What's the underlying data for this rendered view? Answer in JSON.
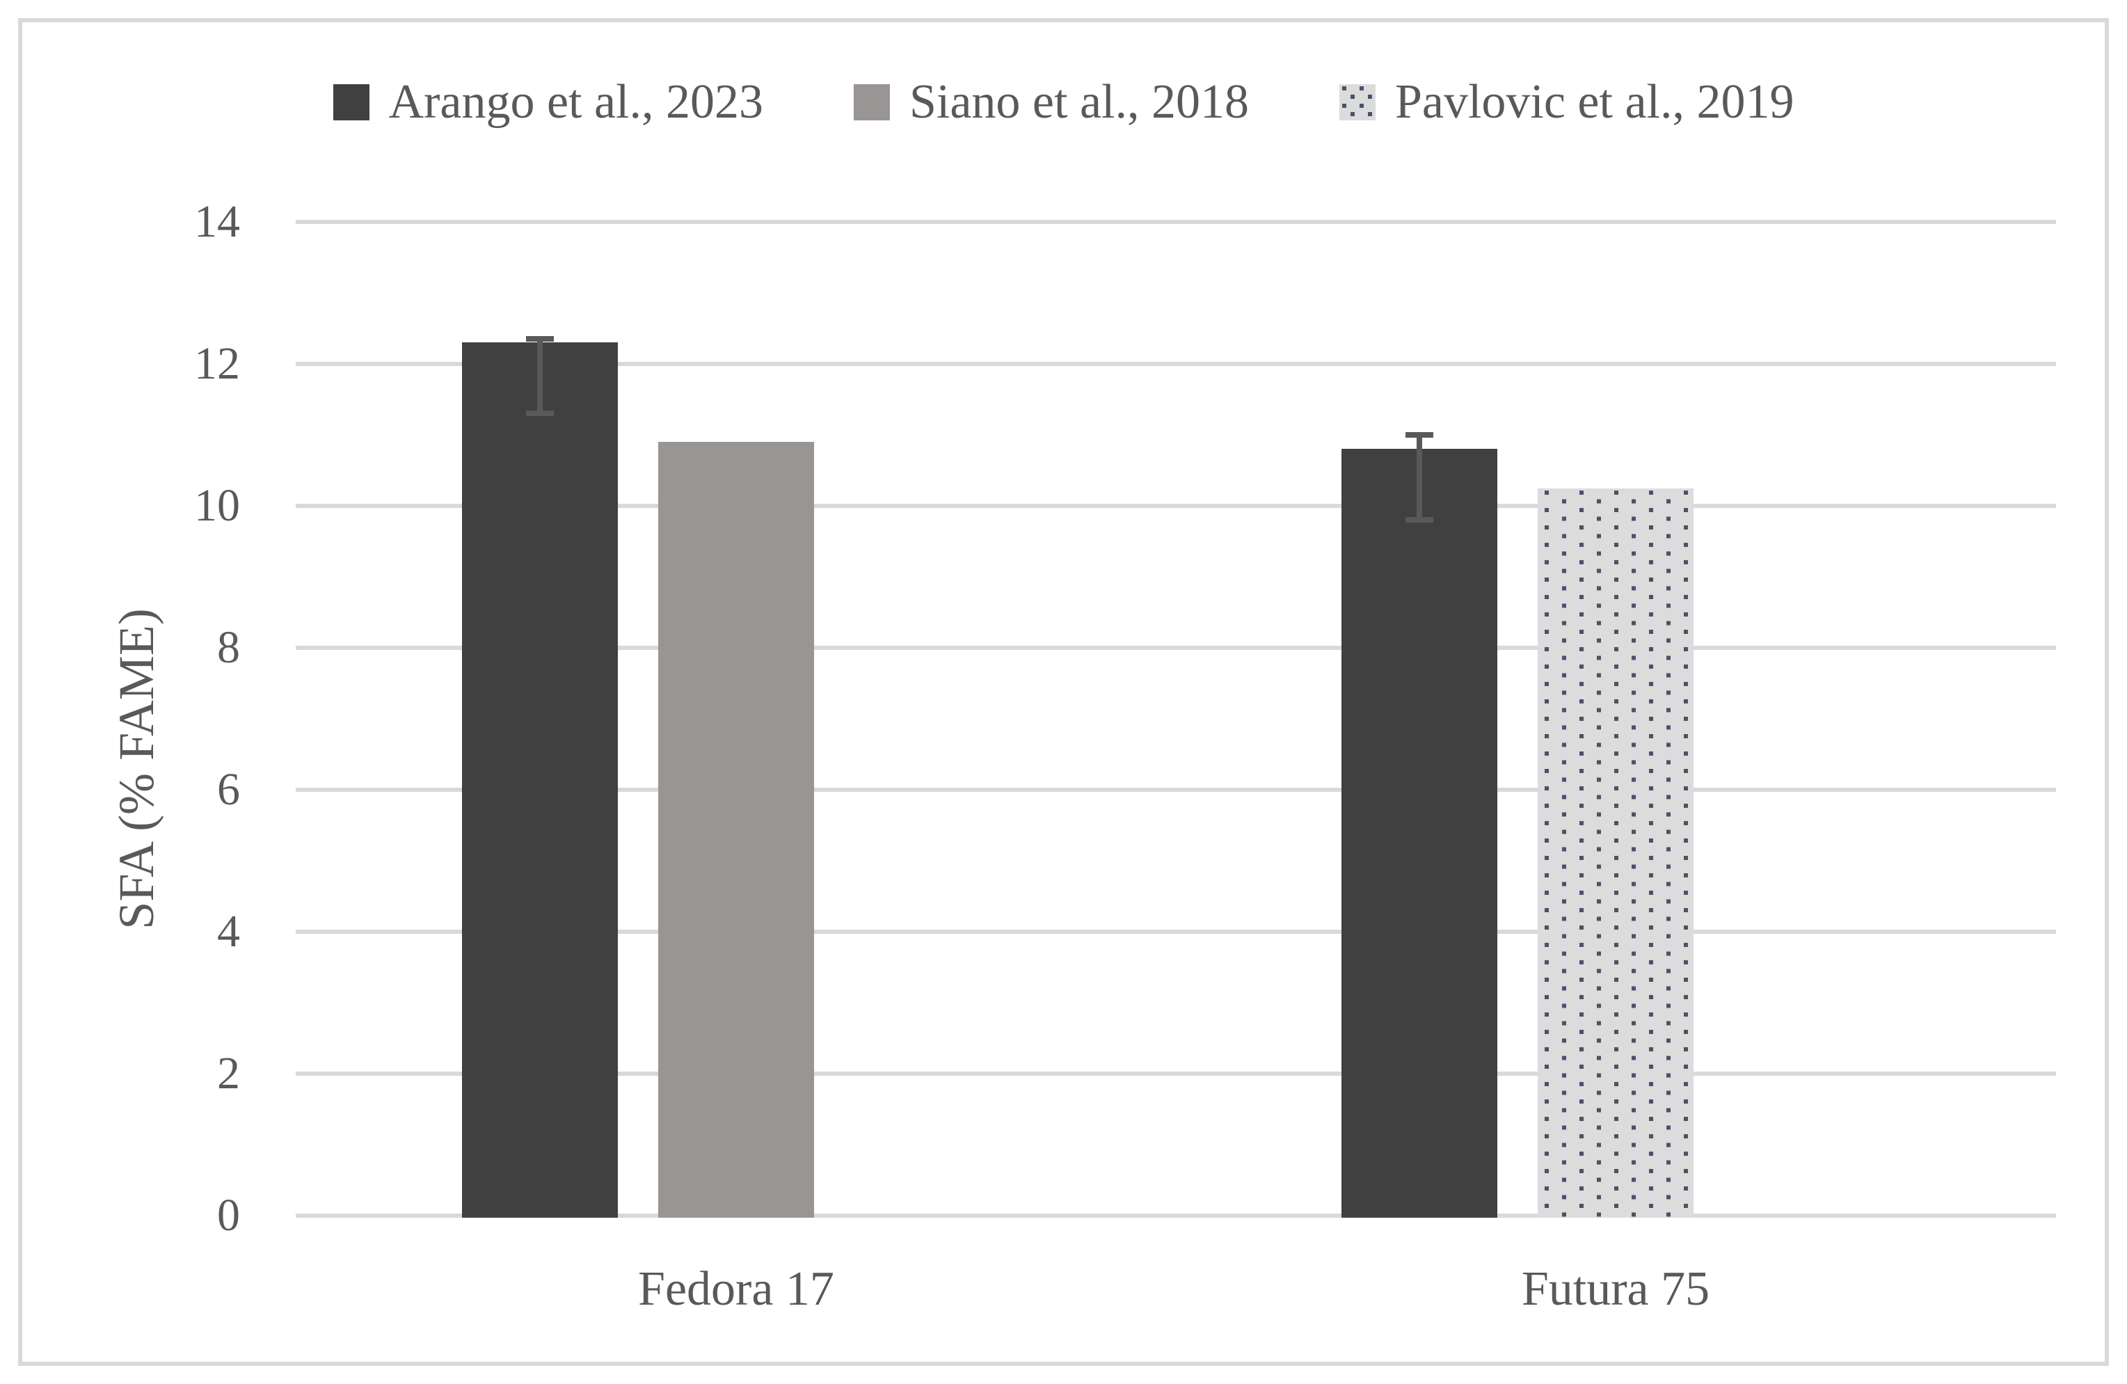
{
  "chart_data": {
    "type": "bar",
    "title": "",
    "xlabel": "",
    "ylabel": "SFA (% FAME)",
    "ylim": [
      0,
      14
    ],
    "yticks": [
      0,
      2,
      4,
      6,
      8,
      10,
      12,
      14
    ],
    "grid": "horizontal",
    "legend_position": "top",
    "categories": [
      "Fedora 17",
      "Futura 75"
    ],
    "series": [
      {
        "name": "Arango et al., 2023",
        "style": "solid",
        "color": "#404040",
        "values": [
          12.3,
          10.8
        ],
        "error_bars": [
          {
            "top": 12.35,
            "bottom": 11.3
          },
          {
            "top": 11.0,
            "bottom": 9.8
          }
        ]
      },
      {
        "name": "Siano et al., 2018",
        "style": "solid",
        "color": "#999594",
        "values": [
          10.9,
          null
        ],
        "error_bars": [
          null,
          null
        ]
      },
      {
        "name": "Pavlovic et al., 2019",
        "style": "dotted-pattern",
        "color": "#dcdcdc",
        "dot_color": "#44546a",
        "values": [
          null,
          10.25
        ],
        "error_bars": [
          null,
          null
        ]
      }
    ],
    "colors": {
      "gridline": "#d9d9d9",
      "text": "#595959",
      "error_bar": "#595959",
      "figure_border": "#d9d9d9"
    }
  }
}
